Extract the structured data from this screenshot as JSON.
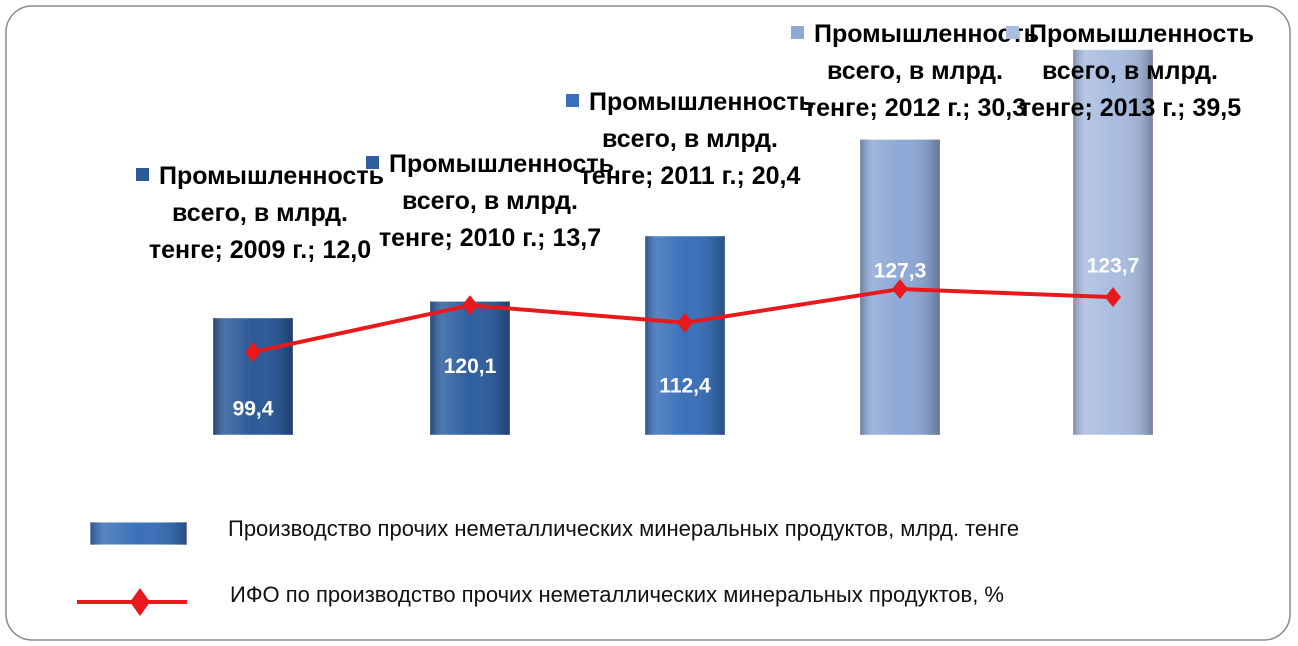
{
  "chart_data": {
    "type": "bar_line",
    "categories": [
      "2009 г.",
      "2010 г.",
      "2011 г.",
      "2012 г.",
      "2013 г."
    ],
    "data_label_series_name": "Промышленность всего, в млрд. тенге",
    "label_separator": "; ",
    "series": [
      {
        "name": "Производство прочих неметаллических минеральных продуктов, млрд. тенге",
        "type": "bar",
        "colors": [
          "#2c5a98",
          "#2f5f9f",
          "#3a70b8",
          "#8ea9d6",
          "#aabde0"
        ],
        "color": "#3a70b8",
        "values": [
          12.0,
          13.7,
          20.4,
          30.3,
          39.5
        ],
        "value_labels": [
          "12,0",
          "13,7",
          "20,4",
          "30,3",
          "39,5"
        ]
      },
      {
        "name": "ИФО по производство прочих неметаллических минеральных продуктов, %",
        "type": "line",
        "axis": "y2",
        "color": "#e8191c",
        "values": [
          99.4,
          120.1,
          112.4,
          127.3,
          123.7
        ],
        "value_labels": [
          "99,4",
          "120,1",
          "112,4",
          "127,3",
          "123,7"
        ]
      }
    ],
    "ylim": [
      0,
      45
    ],
    "y2lim": [
      62.7,
      257
    ]
  }
}
